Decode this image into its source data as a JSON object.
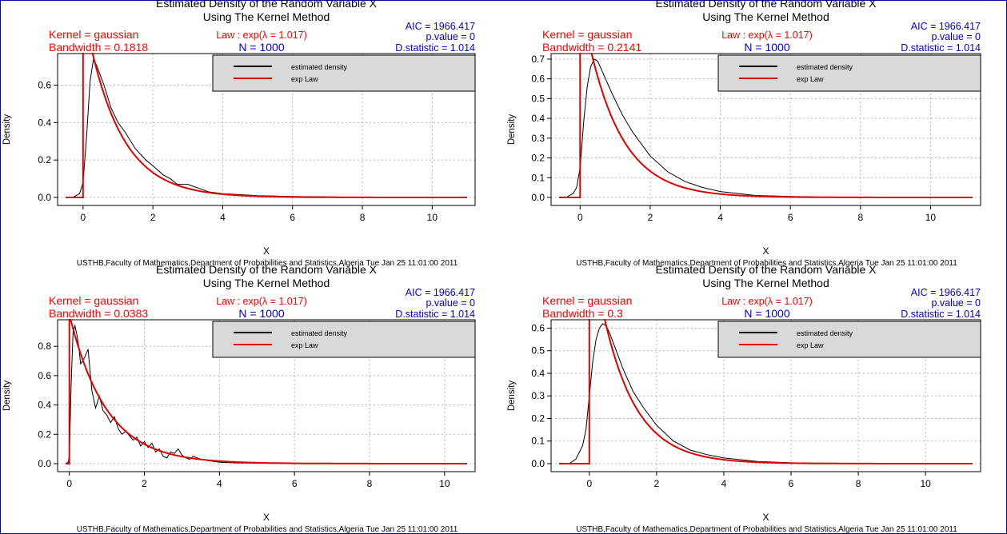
{
  "panels": [
    {
      "title_line1": "Estimated Density of the Random Variable X",
      "title_line2": "Using The Kernel Method",
      "kernel_text": "Kernel = gaussian",
      "bandwidth_text": "Bandwidth = 0.1818",
      "law_text": "Law : exp(λ = 1.017)",
      "n_text": "N = 1000",
      "aic_text": "AIC = 1966.417",
      "pvalue_text": "p.value = 0",
      "dstat_text": "D.statistic = 1.014",
      "legend": [
        "estimated density",
        "exp Law"
      ],
      "ylabel": "Density",
      "xlabel": "X",
      "footer": "USTHB,Faculty of Mathematics,Department of Probabilities and Statistics,Algeria Tue Jan 25 11:01:00 2011"
    },
    {
      "title_line1": "Estimated Density of the Random Variable X",
      "title_line2": "Using The Kernel Method",
      "kernel_text": "Kernel = gaussian",
      "bandwidth_text": "Bandwidth = 0.2141",
      "law_text": "Law : exp(λ = 1.017)",
      "n_text": "N = 1000",
      "aic_text": "AIC = 1966.417",
      "pvalue_text": "p.value = 0",
      "dstat_text": "D.statistic = 1.014",
      "legend": [
        "estimated density",
        "exp Law"
      ],
      "ylabel": "Density",
      "xlabel": "X",
      "footer": "USTHB,Faculty of Mathematics,Department of Probabilities and Statistics,Algeria Tue Jan 25 11:01:00 2011"
    },
    {
      "title_line1": "Estimated Density of the Random Variable X",
      "title_line2": "Using The Kernel Method",
      "kernel_text": "Kernel = gaussian",
      "bandwidth_text": "Bandwidth = 0.0383",
      "law_text": "Law : exp(λ = 1.017)",
      "n_text": "N = 1000",
      "aic_text": "AIC = 1966.417",
      "pvalue_text": "p.value = 0",
      "dstat_text": "D.statistic = 1.014",
      "legend": [
        "estimated density",
        "exp Law"
      ],
      "ylabel": "Density",
      "xlabel": "X",
      "footer": "USTHB,Faculty of Mathematics,Department of Probabilities and Statistics,Algeria Tue Jan 25 11:01:00 2011"
    },
    {
      "title_line1": "Estimated Density of the Random Variable X",
      "title_line2": "Using The Kernel Method",
      "kernel_text": "Kernel = gaussian",
      "bandwidth_text": "Bandwidth = 0.3",
      "law_text": "Law : exp(λ = 1.017)",
      "n_text": "N = 1000",
      "aic_text": "AIC = 1966.417",
      "pvalue_text": "p.value = 0",
      "dstat_text": "D.statistic = 1.014",
      "legend": [
        "estimated density",
        "exp Law"
      ],
      "ylabel": "Density",
      "xlabel": "X",
      "footer": "USTHB,Faculty of Mathematics,Department of Probabilities and Statistics,Algeria Tue Jan 25 11:01:00 2011"
    }
  ],
  "colors": {
    "estimated": "#000000",
    "law": "#e00000",
    "title": "#000000",
    "red_text": "#ff0000",
    "blue_text": "#0000cc",
    "legend_bg": "#d9d9d9",
    "grid": "#b5b5b5"
  },
  "chart_data": [
    {
      "type": "line",
      "x_range": [
        -0.5,
        11.0
      ],
      "xlim": [
        -0.5,
        11.0
      ],
      "ylim": [
        0.0,
        0.76
      ],
      "xticks": [
        0,
        2,
        4,
        6,
        8,
        10
      ],
      "yticks": [
        0.0,
        0.2,
        0.4,
        0.6
      ],
      "bandwidth": 0.1818,
      "lambda": 1.017,
      "grid": true,
      "legend_position": "top-right",
      "series": [
        {
          "name": "estimated density",
          "x": [
            -0.5,
            -0.3,
            -0.1,
            0.0,
            0.1,
            0.2,
            0.3,
            0.4,
            0.6,
            0.8,
            1.0,
            1.2,
            1.5,
            1.8,
            2.0,
            2.3,
            2.5,
            2.7,
            3.0,
            3.3,
            3.6,
            4.0,
            4.5,
            5.0,
            6.0,
            7.0,
            8.0,
            9.0,
            10.0,
            11.0
          ],
          "y": [
            0.0,
            0.0,
            0.02,
            0.08,
            0.32,
            0.62,
            0.74,
            0.7,
            0.6,
            0.48,
            0.4,
            0.35,
            0.26,
            0.2,
            0.17,
            0.12,
            0.1,
            0.07,
            0.07,
            0.05,
            0.03,
            0.02,
            0.015,
            0.01,
            0.005,
            0.003,
            0.001,
            0.0,
            0.0,
            0.0
          ]
        },
        {
          "name": "exp Law",
          "function": "lambda*exp(-lambda*x)",
          "x_from": 0.0,
          "x_to": 11.0
        }
      ]
    },
    {
      "type": "line",
      "x_range": [
        -0.6,
        11.2
      ],
      "xlim": [
        -0.6,
        11.2
      ],
      "ylim": [
        0.0,
        0.72
      ],
      "xticks": [
        0,
        2,
        4,
        6,
        8,
        10
      ],
      "yticks": [
        0.0,
        0.1,
        0.2,
        0.3,
        0.4,
        0.5,
        0.6,
        0.7
      ],
      "bandwidth": 0.2141,
      "lambda": 1.017,
      "grid": true,
      "legend_position": "top-right",
      "series": [
        {
          "name": "estimated density",
          "x": [
            -0.6,
            -0.4,
            -0.2,
            -0.1,
            0.0,
            0.1,
            0.2,
            0.3,
            0.4,
            0.5,
            0.7,
            0.9,
            1.2,
            1.5,
            2.0,
            2.5,
            3.0,
            3.5,
            4.0,
            5.0,
            6.0,
            7.0,
            8.0,
            9.0,
            10.0,
            11.2
          ],
          "y": [
            0.0,
            0.0,
            0.02,
            0.05,
            0.15,
            0.38,
            0.56,
            0.66,
            0.7,
            0.69,
            0.61,
            0.53,
            0.42,
            0.33,
            0.21,
            0.13,
            0.08,
            0.05,
            0.03,
            0.01,
            0.005,
            0.002,
            0.001,
            0.0,
            0.0,
            0.0
          ]
        },
        {
          "name": "exp Law",
          "function": "lambda*exp(-lambda*x)",
          "x_from": 0.0,
          "x_to": 11.2
        }
      ]
    },
    {
      "type": "line",
      "x_range": [
        -0.1,
        10.6
      ],
      "xlim": [
        -0.1,
        10.6
      ],
      "ylim": [
        0.0,
        0.97
      ],
      "xticks": [
        0,
        2,
        4,
        6,
        8,
        10
      ],
      "yticks": [
        0.0,
        0.2,
        0.4,
        0.6,
        0.8
      ],
      "bandwidth": 0.0383,
      "lambda": 1.017,
      "grid": true,
      "legend_position": "top-right",
      "series": [
        {
          "name": "estimated density",
          "x": [
            -0.1,
            -0.03,
            0.0,
            0.05,
            0.1,
            0.15,
            0.2,
            0.25,
            0.3,
            0.4,
            0.5,
            0.6,
            0.7,
            0.8,
            0.9,
            1.0,
            1.1,
            1.2,
            1.3,
            1.4,
            1.5,
            1.6,
            1.7,
            1.8,
            1.9,
            2.0,
            2.1,
            2.2,
            2.3,
            2.4,
            2.5,
            2.6,
            2.7,
            2.8,
            2.9,
            3.0,
            3.1,
            3.2,
            3.3,
            3.5,
            3.7,
            4.0,
            4.5,
            5.0,
            6.0,
            7.0,
            8.0,
            9.0,
            10.0,
            10.6
          ],
          "y": [
            0.0,
            0.01,
            0.05,
            0.55,
            0.9,
            0.94,
            0.88,
            0.8,
            0.68,
            0.72,
            0.78,
            0.5,
            0.38,
            0.46,
            0.36,
            0.33,
            0.28,
            0.32,
            0.24,
            0.2,
            0.22,
            0.19,
            0.16,
            0.18,
            0.12,
            0.15,
            0.11,
            0.14,
            0.08,
            0.1,
            0.05,
            0.04,
            0.08,
            0.07,
            0.1,
            0.06,
            0.04,
            0.03,
            0.05,
            0.03,
            0.02,
            0.01,
            0.005,
            0.003,
            0.001,
            0.0,
            0.0,
            0.0,
            0.0,
            0.0
          ]
        },
        {
          "name": "exp Law",
          "function": "lambda*exp(-lambda*x)",
          "x_from": 0.0,
          "x_to": 10.6
        }
      ]
    },
    {
      "type": "line",
      "x_range": [
        -0.9,
        11.4
      ],
      "xlim": [
        -0.9,
        11.4
      ],
      "ylim": [
        0.0,
        0.63
      ],
      "xticks": [
        0,
        2,
        4,
        6,
        8,
        10
      ],
      "yticks": [
        0.0,
        0.1,
        0.2,
        0.3,
        0.4,
        0.5,
        0.6
      ],
      "bandwidth": 0.3,
      "lambda": 1.017,
      "grid": true,
      "legend_position": "top-right",
      "series": [
        {
          "name": "estimated density",
          "x": [
            -0.9,
            -0.6,
            -0.4,
            -0.2,
            -0.1,
            0.0,
            0.1,
            0.2,
            0.3,
            0.4,
            0.5,
            0.6,
            0.8,
            1.0,
            1.3,
            1.6,
            2.0,
            2.5,
            3.0,
            3.5,
            4.0,
            5.0,
            6.0,
            7.0,
            8.0,
            9.0,
            10.0,
            11.4
          ],
          "y": [
            0.0,
            0.0,
            0.02,
            0.08,
            0.15,
            0.3,
            0.45,
            0.55,
            0.6,
            0.62,
            0.61,
            0.58,
            0.5,
            0.42,
            0.32,
            0.25,
            0.17,
            0.1,
            0.06,
            0.04,
            0.025,
            0.01,
            0.004,
            0.002,
            0.001,
            0.0,
            0.0,
            0.0
          ]
        },
        {
          "name": "exp Law",
          "function": "lambda*exp(-lambda*x)",
          "x_from": 0.0,
          "x_to": 11.4
        }
      ]
    }
  ]
}
